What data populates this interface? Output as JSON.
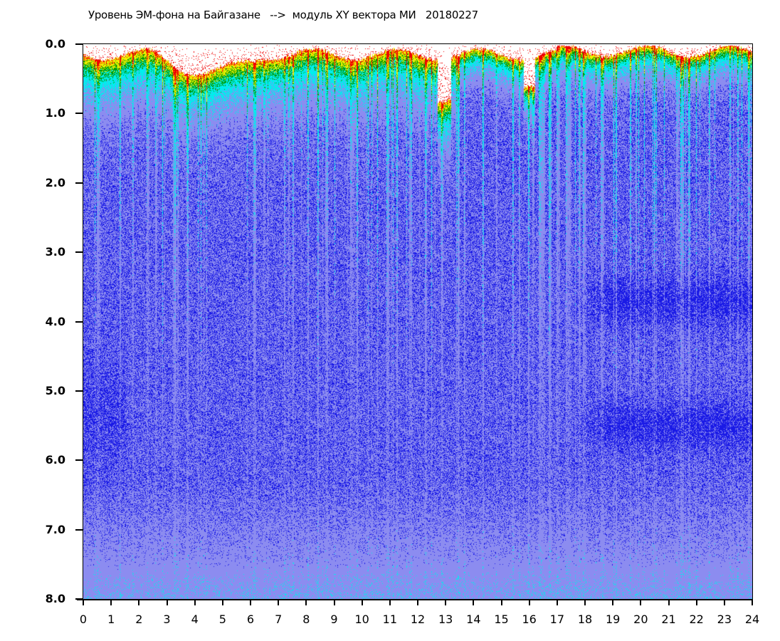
{
  "chart_data": {
    "type": "heatmap",
    "title": "Уровень ЭМ-фона на Байгазане   -->  модуль XY вектора МИ   20180227",
    "xlabel": "",
    "ylabel": "",
    "xlim": [
      0,
      24
    ],
    "ylim": [
      0.0,
      8.0
    ],
    "y_inverted": true,
    "x_ticks": [
      "0",
      "1",
      "2",
      "3",
      "4",
      "5",
      "6",
      "7",
      "8",
      "9",
      "10",
      "11",
      "12",
      "13",
      "14",
      "15",
      "16",
      "17",
      "18",
      "19",
      "20",
      "21",
      "22",
      "23",
      "24"
    ],
    "y_ticks": [
      "0.0",
      "1.0",
      "2.0",
      "3.0",
      "4.0",
      "5.0",
      "6.0",
      "7.0",
      "8.0"
    ],
    "color_scale": [
      "#1a1ae6",
      "#8c8cf0",
      "#00eeee",
      "#009a00",
      "#f0f000",
      "#f00000"
    ],
    "features": {
      "strong_bands_below": 1.2,
      "dark_bands_after_hour": 17.5,
      "dark_band_centers": [
        3.7,
        5.5
      ],
      "dip_hours": [
        13.0,
        16.0
      ]
    }
  }
}
